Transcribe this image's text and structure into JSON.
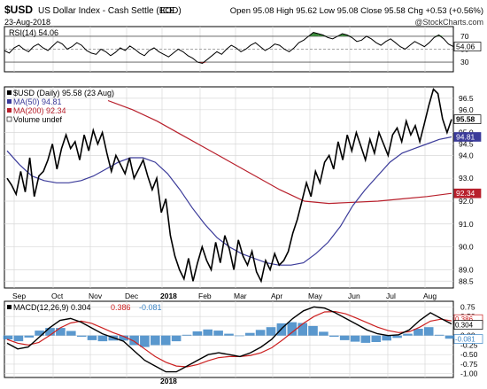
{
  "header": {
    "symbol": "$USD",
    "name": "US Dollar Index - Cash Settle (EOD)",
    "exchange": "ICE",
    "date": "23-Aug-2018",
    "quote_text": "Open 95.08  High 95.62  Low 95.08  Close 95.58  Chg +0.53 (+0.56%)",
    "open_label": "Open",
    "open": "95.08",
    "high_label": "High",
    "high": "95.62",
    "low_label": "Low",
    "low": "95.08",
    "close_label": "Close",
    "close": "95.58",
    "chg_label": "Chg",
    "chg": "+0.53 (+0.56%)",
    "copyright": "@StockCharts.com"
  },
  "colors": {
    "price": "#000000",
    "ma50": "#3b3b9a",
    "ma200": "#b8202c",
    "macd": "#000000",
    "signal": "#cc2020",
    "histogram": "#3d86c6",
    "rsi_overbought_fill": "#3a8a3a",
    "rsi_oversold_fill": "#c03030",
    "grid": "#d8d8d8"
  },
  "chart_data": [
    {
      "type": "line",
      "panel": "rsi",
      "title": "RSI(14) 54.06",
      "y_ticks": [
        30,
        50,
        70
      ],
      "ylim": [
        15,
        85
      ],
      "levels": [
        30,
        70
      ],
      "current_value": "54.06",
      "series": [
        {
          "values": [
            48,
            44,
            52,
            56,
            50,
            46,
            54,
            58,
            52,
            48,
            55,
            62,
            58,
            50,
            54,
            60,
            56,
            48,
            44,
            42,
            50,
            46,
            40,
            45,
            52,
            48,
            55,
            50,
            44,
            40,
            48,
            52,
            46,
            42,
            38,
            44,
            50,
            46,
            40,
            36,
            30,
            28,
            34,
            40,
            46,
            42,
            50,
            56,
            52,
            46,
            50,
            56,
            60,
            54,
            48,
            52,
            58,
            56,
            50,
            46,
            52,
            60,
            64,
            70,
            76,
            74,
            72,
            68,
            66,
            70,
            74,
            72,
            68,
            62,
            64,
            70,
            66,
            60,
            56,
            62,
            66,
            60,
            54,
            50,
            56,
            62,
            58,
            54,
            60,
            68,
            72,
            66,
            58,
            54
          ]
        }
      ]
    },
    {
      "type": "line",
      "panel": "price",
      "title": "$USD (Daily) 95.58 (23 Aug)",
      "x_ticks": [
        "Sep",
        "Oct",
        "Nov",
        "Dec",
        "2018",
        "Feb",
        "Mar",
        "Apr",
        "May",
        "Jun",
        "Jul",
        "Aug"
      ],
      "y_ticks": [
        88.5,
        89.0,
        90.0,
        91.0,
        92.0,
        93.0,
        94.0,
        94.5,
        95.0,
        96.0,
        96.5
      ],
      "ylim": [
        88.2,
        97.0
      ],
      "value_tags": [
        "95.58",
        "94.81",
        "92.34"
      ],
      "legend": [
        "$USD (Daily) 95.58 (23 Aug)",
        "MA(50) 94.81",
        "MA(200) 92.34",
        "Volume undef"
      ],
      "series": [
        {
          "name": "$USD (Daily) 95.58 (23 Aug)",
          "values": [
            93.0,
            92.7,
            92.3,
            93.3,
            92.4,
            93.9,
            92.2,
            93.1,
            93.3,
            93.8,
            94.5,
            93.4,
            94.3,
            94.9,
            94.3,
            94.6,
            93.8,
            94.9,
            94.2,
            95.1,
            94.5,
            95.0,
            94.1,
            93.3,
            94.0,
            93.6,
            93.2,
            93.9,
            93.0,
            93.4,
            93.8,
            93.1,
            92.5,
            93.0,
            91.5,
            92.1,
            90.5,
            89.6,
            89.0,
            88.6,
            89.5,
            88.5,
            89.3,
            90.0,
            89.4,
            89.0,
            90.2,
            89.3,
            90.5,
            89.9,
            89.0,
            90.3,
            89.6,
            89.2,
            89.8,
            88.9,
            88.5,
            89.4,
            89.0,
            89.7,
            89.2,
            89.4,
            89.8,
            90.6,
            91.2,
            92.0,
            92.8,
            92.2,
            93.3,
            92.8,
            93.7,
            94.0,
            93.4,
            94.6,
            93.8,
            94.9,
            94.2,
            95.0,
            94.4,
            93.8,
            94.7,
            94.1,
            95.0,
            94.5,
            94.0,
            94.9,
            95.2,
            94.6,
            95.5,
            94.9,
            95.3,
            94.6,
            95.4,
            96.2,
            96.9,
            96.7,
            95.6,
            95.0,
            95.58
          ]
        },
        {
          "name": "MA(50) 94.81",
          "values": [
            94.2,
            93.6,
            93.1,
            92.9,
            92.8,
            92.8,
            92.9,
            93.1,
            93.4,
            93.7,
            93.9,
            93.9,
            93.7,
            93.2,
            92.5,
            91.7,
            91.0,
            90.4,
            90.0,
            89.7,
            89.5,
            89.3,
            89.2,
            89.2,
            89.3,
            89.7,
            90.2,
            90.9,
            91.8,
            92.5,
            93.1,
            93.7,
            94.1,
            94.3,
            94.5,
            94.7,
            94.81
          ]
        },
        {
          "name": "MA(200) 92.34",
          "values": [
            96.4,
            96.0,
            95.5,
            94.9,
            94.3,
            93.7,
            93.1,
            92.5,
            92.0,
            91.9,
            91.95,
            92.0,
            92.1,
            92.2,
            92.34
          ]
        }
      ]
    },
    {
      "type": "line",
      "panel": "macd",
      "title": "MACD(12,26,9) 0.304, 0.386, -0.081",
      "y_ticks": [
        -1.0,
        -0.75,
        -0.5,
        -0.25,
        0.0,
        0.25,
        0.5,
        0.75
      ],
      "ylim": [
        -1.1,
        0.9
      ],
      "value_tags": [
        "0.386",
        "0.304",
        "-0.081"
      ],
      "legend": [
        "MACD(12,26,9) 0.304",
        "0.386",
        "-0.081"
      ],
      "series": [
        {
          "name": "MACD(12,26,9) 0.304",
          "values": [
            -0.2,
            -0.35,
            -0.3,
            -0.05,
            0.2,
            0.4,
            0.45,
            0.35,
            0.2,
            0.05,
            -0.05,
            -0.15,
            -0.4,
            -0.65,
            -0.8,
            -0.95,
            -0.95,
            -0.8,
            -0.65,
            -0.5,
            -0.45,
            -0.5,
            -0.55,
            -0.45,
            -0.3,
            -0.1,
            0.2,
            0.45,
            0.65,
            0.75,
            0.72,
            0.6,
            0.45,
            0.3,
            0.15,
            0.05,
            0.0,
            0.02,
            0.15,
            0.4,
            0.6,
            0.45,
            0.304
          ]
        },
        {
          "name": "0.386",
          "values": [
            -0.1,
            -0.2,
            -0.25,
            -0.18,
            0.0,
            0.2,
            0.33,
            0.38,
            0.32,
            0.2,
            0.08,
            -0.02,
            -0.15,
            -0.35,
            -0.55,
            -0.7,
            -0.8,
            -0.82,
            -0.76,
            -0.66,
            -0.58,
            -0.55,
            -0.55,
            -0.52,
            -0.45,
            -0.32,
            -0.12,
            0.1,
            0.32,
            0.5,
            0.62,
            0.63,
            0.57,
            0.46,
            0.34,
            0.22,
            0.13,
            0.08,
            0.1,
            0.22,
            0.38,
            0.43,
            0.386
          ]
        },
        {
          "name": "-0.081",
          "values": [
            -0.1,
            -0.15,
            -0.05,
            0.13,
            0.2,
            0.2,
            0.12,
            -0.03,
            -0.12,
            -0.15,
            -0.13,
            -0.13,
            -0.25,
            -0.3,
            -0.25,
            -0.25,
            -0.15,
            0.02,
            0.11,
            0.16,
            0.13,
            0.05,
            0.0,
            0.07,
            0.15,
            0.22,
            0.32,
            0.35,
            0.33,
            0.25,
            0.1,
            -0.03,
            -0.12,
            -0.16,
            -0.19,
            -0.17,
            -0.13,
            -0.06,
            0.05,
            0.18,
            0.22,
            0.02,
            -0.081
          ]
        }
      ]
    }
  ]
}
